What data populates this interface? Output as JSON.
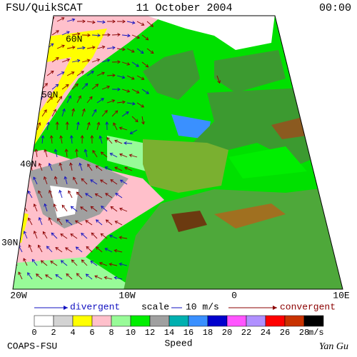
{
  "header": {
    "left": "FSU/QuikSCAT",
    "center": "11 October 2004",
    "right": "00:00"
  },
  "map": {
    "lat_labels": [
      "60N",
      "50N",
      "40N",
      "30N"
    ],
    "lon_labels": [
      "20W",
      "10W",
      "0",
      "10E"
    ]
  },
  "legend": {
    "divergent": "divergent",
    "scale": "scale",
    "scale_value": "10 m/s",
    "convergent": "convergent",
    "colors": [
      "#ffffff",
      "#d3d3d3",
      "#ffff00",
      "#ffc0cb",
      "#98fb98",
      "#00ee00",
      "#a0a0a0",
      "#00b0b0",
      "#3a90ff",
      "#0000cd",
      "#ff55ff",
      "#b090ff",
      "#ff0000",
      "#c83200",
      "#000000"
    ],
    "ticks": [
      "0",
      "2",
      "4",
      "6",
      "8",
      "10",
      "12",
      "14",
      "16",
      "18",
      "20",
      "22",
      "24",
      "26",
      "28"
    ],
    "unit": "m/s",
    "title": "Speed"
  },
  "footer": {
    "left": "COAPS-FSU",
    "right": "Yan Gu"
  }
}
